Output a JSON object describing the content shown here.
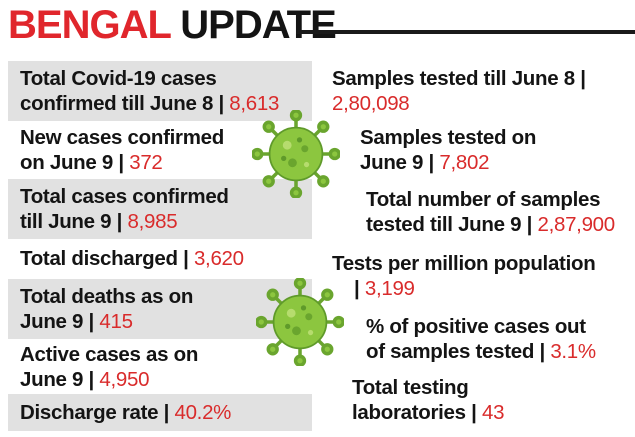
{
  "header": {
    "title_part1": "BENGAL",
    "title_part2": "UPDATE"
  },
  "left": [
    {
      "line1": "Total Covid-19 cases",
      "line2": "confirmed till June 8 |",
      "value": "8,613"
    },
    {
      "line1": "New cases confirmed",
      "line2": "on June 9 |",
      "value": "372"
    },
    {
      "line1": "Total cases confirmed",
      "line2": "till June 9 |",
      "value": "8,985"
    },
    {
      "line1": "",
      "line2": "Total discharged |",
      "value": "3,620"
    },
    {
      "line1": "Total deaths as on",
      "line2": "June 9 |",
      "value": "415"
    },
    {
      "line1": "Active cases as on",
      "line2": "June 9 |",
      "value": "4,950"
    },
    {
      "line1": "",
      "line2": "Discharge rate |",
      "value": "40.2%"
    }
  ],
  "right": [
    {
      "line1": "Samples tested till June 8 |",
      "line2": "",
      "value": "2,80,098"
    },
    {
      "line1": "Samples tested on",
      "line2": "June 9 |",
      "value": "7,802"
    },
    {
      "line1": "Total number of samples",
      "line2": "tested till June 9 |",
      "value": "2,87,900"
    },
    {
      "line1": "Tests per million population",
      "line2": "|",
      "value": "3,199"
    },
    {
      "line1": "% of positive cases out",
      "line2": "of samples tested |",
      "value": "3.1%"
    },
    {
      "line1": "Total testing",
      "line2": "laboratories |",
      "value": "43"
    }
  ],
  "colors": {
    "accent_red": "#e0262c",
    "value_red": "#d92b2b",
    "shade": "#e1e1e1",
    "virus_green": "#8cc63f"
  },
  "icons": [
    "virus-icon",
    "virus-icon"
  ]
}
